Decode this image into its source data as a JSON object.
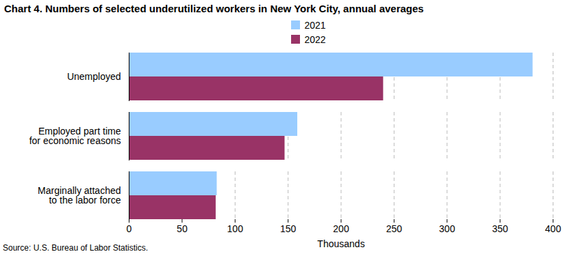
{
  "chart_data": {
    "type": "bar",
    "orientation": "horizontal",
    "title": "Chart 4. Numbers of selected underutilized workers in New York City, annual averages",
    "categories": [
      "Unemployed",
      "Employed part time\nfor economic reasons",
      "Marginally attached\nto the labor force"
    ],
    "series": [
      {
        "name": "2021",
        "color": "#99ccff",
        "values": [
          381,
          159,
          83
        ]
      },
      {
        "name": "2022",
        "color": "#993366",
        "values": [
          240,
          147,
          82
        ]
      }
    ],
    "xlabel": "Thousands",
    "xlim": [
      0,
      400
    ],
    "xticks": [
      0,
      50,
      100,
      150,
      200,
      250,
      300,
      350,
      400
    ],
    "grid": true,
    "legend": "top",
    "source": "Source: U.S. Bureau of Labor Statistics."
  }
}
